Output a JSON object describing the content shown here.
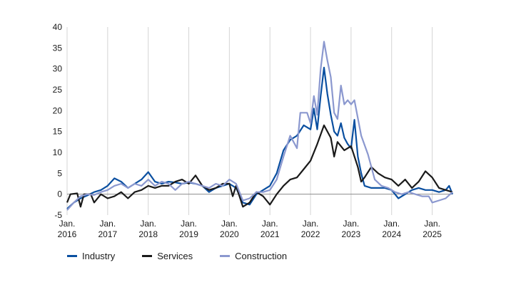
{
  "chart_data": {
    "type": "line",
    "title": "",
    "xlabel": "",
    "ylabel": "",
    "ylim": [
      -5,
      40
    ],
    "yticks": [
      -5,
      0,
      5,
      10,
      15,
      20,
      25,
      30,
      35,
      40
    ],
    "xlim": [
      "2016-01",
      "2025-07"
    ],
    "xticks": [
      {
        "date": "2016-01",
        "line1": "Jan.",
        "line2": "2016"
      },
      {
        "date": "2017-01",
        "line1": "Jan.",
        "line2": "2017"
      },
      {
        "date": "2018-01",
        "line1": "Jan.",
        "line2": "2018"
      },
      {
        "date": "2019-01",
        "line1": "Jan.",
        "line2": "2019"
      },
      {
        "date": "2020-01",
        "line1": "Jan.",
        "line2": "2020"
      },
      {
        "date": "2021-01",
        "line1": "Jan.",
        "line2": "2021"
      },
      {
        "date": "2022-01",
        "line1": "Jan.",
        "line2": "2022"
      },
      {
        "date": "2023-01",
        "line1": "Jan.",
        "line2": "2023"
      },
      {
        "date": "2024-01",
        "line1": "Jan.",
        "line2": "2024"
      },
      {
        "date": "2025-01",
        "line1": "Jan.",
        "line2": "2025"
      }
    ],
    "grid": "vertical",
    "legend_position": "bottom-left",
    "series": [
      {
        "name": "Industry",
        "color": "#0a4fa0",
        "points": [
          [
            "2016-01",
            -3.5
          ],
          [
            "2016-03",
            -2.0
          ],
          [
            "2016-05",
            -1.0
          ],
          [
            "2016-07",
            -0.3
          ],
          [
            "2016-09",
            0.5
          ],
          [
            "2016-11",
            1.0
          ],
          [
            "2017-01",
            2.0
          ],
          [
            "2017-03",
            3.8
          ],
          [
            "2017-05",
            3.0
          ],
          [
            "2017-07",
            1.5
          ],
          [
            "2017-09",
            2.5
          ],
          [
            "2017-11",
            3.5
          ],
          [
            "2018-01",
            5.3
          ],
          [
            "2018-03",
            3.0
          ],
          [
            "2018-05",
            2.5
          ],
          [
            "2018-07",
            3.0
          ],
          [
            "2018-09",
            2.8
          ],
          [
            "2018-11",
            2.5
          ],
          [
            "2019-01",
            2.8
          ],
          [
            "2019-03",
            2.5
          ],
          [
            "2019-05",
            2.0
          ],
          [
            "2019-07",
            0.5
          ],
          [
            "2019-09",
            1.5
          ],
          [
            "2019-11",
            2.0
          ],
          [
            "2020-01",
            2.5
          ],
          [
            "2020-03",
            1.5
          ],
          [
            "2020-05",
            -2.0
          ],
          [
            "2020-07",
            -2.5
          ],
          [
            "2020-09",
            0.0
          ],
          [
            "2020-11",
            1.0
          ],
          [
            "2021-01",
            2.0
          ],
          [
            "2021-03",
            5.0
          ],
          [
            "2021-05",
            10.5
          ],
          [
            "2021-07",
            13.0
          ],
          [
            "2021-09",
            14.0
          ],
          [
            "2021-11",
            16.5
          ],
          [
            "2022-01",
            15.5
          ],
          [
            "2022-02",
            20.5
          ],
          [
            "2022-03",
            15.5
          ],
          [
            "2022-04",
            23.5
          ],
          [
            "2022-05",
            30.3
          ],
          [
            "2022-06",
            24.0
          ],
          [
            "2022-07",
            19.0
          ],
          [
            "2022-08",
            15.0
          ],
          [
            "2022-09",
            14.0
          ],
          [
            "2022-10",
            17.0
          ],
          [
            "2022-11",
            13.5
          ],
          [
            "2022-12",
            12.0
          ],
          [
            "2023-01",
            11.0
          ],
          [
            "2023-02",
            17.8
          ],
          [
            "2023-03",
            9.0
          ],
          [
            "2023-04",
            5.0
          ],
          [
            "2023-05",
            2.0
          ],
          [
            "2023-07",
            1.5
          ],
          [
            "2023-09",
            1.5
          ],
          [
            "2023-11",
            1.5
          ],
          [
            "2024-01",
            1.0
          ],
          [
            "2024-03",
            -1.0
          ],
          [
            "2024-05",
            0.0
          ],
          [
            "2024-07",
            1.0
          ],
          [
            "2024-09",
            1.5
          ],
          [
            "2024-11",
            1.0
          ],
          [
            "2025-01",
            1.0
          ],
          [
            "2025-03",
            0.5
          ],
          [
            "2025-05",
            1.0
          ],
          [
            "2025-06",
            2.0
          ],
          [
            "2025-07",
            0.0
          ]
        ]
      },
      {
        "name": "Services",
        "color": "#1a1a1a",
        "points": [
          [
            "2016-01",
            -2.0
          ],
          [
            "2016-02",
            0.0
          ],
          [
            "2016-04",
            0.2
          ],
          [
            "2016-05",
            -3.0
          ],
          [
            "2016-06",
            0.0
          ],
          [
            "2016-08",
            0.0
          ],
          [
            "2016-09",
            -2.0
          ],
          [
            "2016-11",
            0.0
          ],
          [
            "2017-01",
            -1.0
          ],
          [
            "2017-03",
            -0.5
          ],
          [
            "2017-05",
            0.5
          ],
          [
            "2017-07",
            -1.0
          ],
          [
            "2017-09",
            0.5
          ],
          [
            "2017-11",
            1.0
          ],
          [
            "2018-01",
            2.0
          ],
          [
            "2018-03",
            1.5
          ],
          [
            "2018-05",
            2.0
          ],
          [
            "2018-07",
            2.0
          ],
          [
            "2018-09",
            3.0
          ],
          [
            "2018-11",
            3.5
          ],
          [
            "2019-01",
            2.5
          ],
          [
            "2019-03",
            4.5
          ],
          [
            "2019-05",
            2.0
          ],
          [
            "2019-07",
            1.0
          ],
          [
            "2019-09",
            1.5
          ],
          [
            "2019-11",
            2.5
          ],
          [
            "2020-01",
            2.5
          ],
          [
            "2020-02",
            -0.5
          ],
          [
            "2020-03",
            2.0
          ],
          [
            "2020-05",
            -3.0
          ],
          [
            "2020-07",
            -2.0
          ],
          [
            "2020-09",
            0.5
          ],
          [
            "2020-11",
            -0.5
          ],
          [
            "2021-01",
            -2.5
          ],
          [
            "2021-03",
            0.0
          ],
          [
            "2021-05",
            2.0
          ],
          [
            "2021-07",
            3.5
          ],
          [
            "2021-09",
            4.0
          ],
          [
            "2021-11",
            6.0
          ],
          [
            "2022-01",
            8.0
          ],
          [
            "2022-03",
            12.0
          ],
          [
            "2022-05",
            16.5
          ],
          [
            "2022-07",
            13.5
          ],
          [
            "2022-08",
            9.0
          ],
          [
            "2022-09",
            12.5
          ],
          [
            "2022-11",
            10.5
          ],
          [
            "2023-01",
            11.5
          ],
          [
            "2023-03",
            6.5
          ],
          [
            "2023-04",
            3.0
          ],
          [
            "2023-05",
            4.0
          ],
          [
            "2023-07",
            6.5
          ],
          [
            "2023-09",
            5.0
          ],
          [
            "2023-11",
            4.0
          ],
          [
            "2024-01",
            3.5
          ],
          [
            "2024-03",
            2.0
          ],
          [
            "2024-05",
            3.5
          ],
          [
            "2024-07",
            1.5
          ],
          [
            "2024-09",
            3.0
          ],
          [
            "2024-11",
            5.5
          ],
          [
            "2025-01",
            4.0
          ],
          [
            "2025-03",
            1.5
          ],
          [
            "2025-05",
            1.0
          ],
          [
            "2025-07",
            0.5
          ]
        ]
      },
      {
        "name": "Construction",
        "color": "#8b98cf",
        "points": [
          [
            "2016-01",
            -3.8
          ],
          [
            "2016-03",
            -2.0
          ],
          [
            "2016-05",
            -0.5
          ],
          [
            "2016-07",
            0.0
          ],
          [
            "2016-09",
            -0.2
          ],
          [
            "2016-11",
            0.5
          ],
          [
            "2017-01",
            1.0
          ],
          [
            "2017-03",
            2.0
          ],
          [
            "2017-05",
            2.5
          ],
          [
            "2017-07",
            1.5
          ],
          [
            "2017-09",
            2.5
          ],
          [
            "2017-11",
            2.0
          ],
          [
            "2018-01",
            3.5
          ],
          [
            "2018-03",
            2.0
          ],
          [
            "2018-05",
            3.0
          ],
          [
            "2018-07",
            2.5
          ],
          [
            "2018-09",
            1.0
          ],
          [
            "2018-11",
            2.5
          ],
          [
            "2019-01",
            3.0
          ],
          [
            "2019-03",
            2.5
          ],
          [
            "2019-05",
            2.0
          ],
          [
            "2019-07",
            1.5
          ],
          [
            "2019-09",
            2.5
          ],
          [
            "2019-11",
            2.0
          ],
          [
            "2020-01",
            3.5
          ],
          [
            "2020-03",
            2.5
          ],
          [
            "2020-05",
            -1.5
          ],
          [
            "2020-07",
            -1.0
          ],
          [
            "2020-09",
            0.5
          ],
          [
            "2020-11",
            0.5
          ],
          [
            "2021-01",
            1.0
          ],
          [
            "2021-03",
            3.5
          ],
          [
            "2021-05",
            9.0
          ],
          [
            "2021-07",
            14.0
          ],
          [
            "2021-09",
            11.0
          ],
          [
            "2021-10",
            19.5
          ],
          [
            "2021-12",
            19.5
          ],
          [
            "2022-01",
            17.0
          ],
          [
            "2022-02",
            23.5
          ],
          [
            "2022-03",
            19.0
          ],
          [
            "2022-04",
            30.0
          ],
          [
            "2022-05",
            36.5
          ],
          [
            "2022-06",
            32.0
          ],
          [
            "2022-07",
            28.0
          ],
          [
            "2022-08",
            19.5
          ],
          [
            "2022-09",
            18.0
          ],
          [
            "2022-10",
            26.0
          ],
          [
            "2022-11",
            21.5
          ],
          [
            "2022-12",
            22.5
          ],
          [
            "2023-01",
            21.5
          ],
          [
            "2023-02",
            22.5
          ],
          [
            "2023-04",
            14.0
          ],
          [
            "2023-06",
            9.5
          ],
          [
            "2023-08",
            3.5
          ],
          [
            "2023-10",
            2.0
          ],
          [
            "2023-12",
            1.5
          ],
          [
            "2024-02",
            0.5
          ],
          [
            "2024-04",
            0.0
          ],
          [
            "2024-06",
            0.5
          ],
          [
            "2024-08",
            0.0
          ],
          [
            "2024-10",
            -0.5
          ],
          [
            "2024-12",
            -0.5
          ],
          [
            "2025-01",
            -2.0
          ],
          [
            "2025-03",
            -1.5
          ],
          [
            "2025-05",
            -1.0
          ],
          [
            "2025-07",
            0.5
          ]
        ]
      }
    ]
  }
}
